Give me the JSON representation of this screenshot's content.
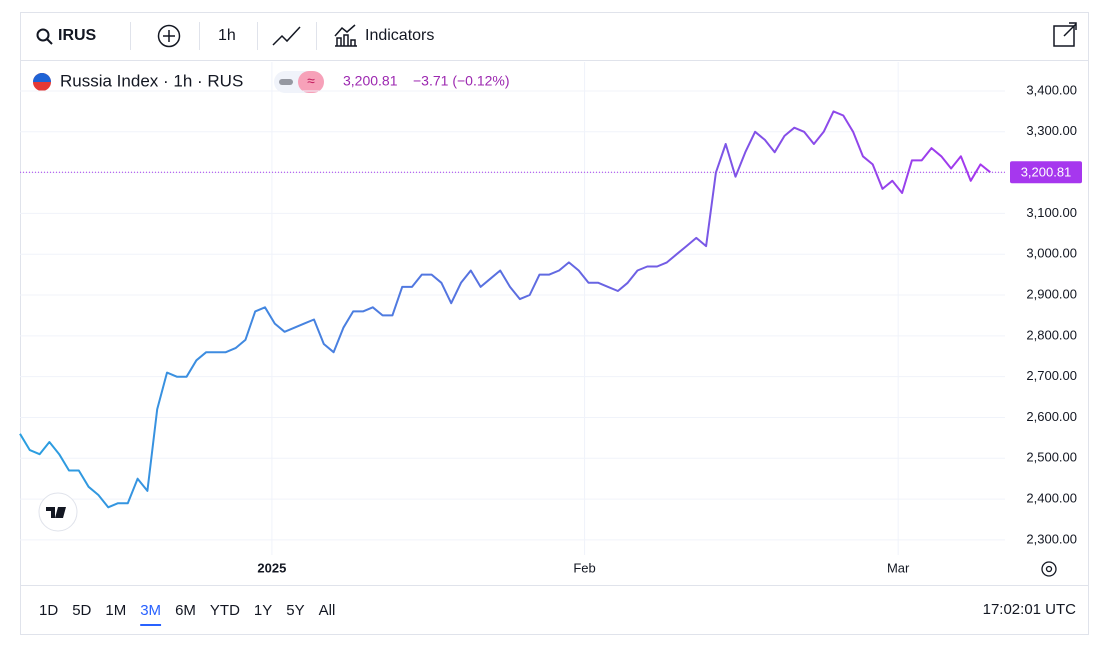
{
  "toolbar": {
    "symbol": "IRUS",
    "interval": "1h",
    "indicators": "Indicators"
  },
  "legend": {
    "name": "Russia Index · 1h · RUS",
    "price": "3,200.81",
    "change": "−3.71 (−0.12%)"
  },
  "ranges": [
    "1D",
    "5D",
    "1M",
    "3M",
    "6M",
    "YTD",
    "1Y",
    "5Y",
    "All"
  ],
  "active_range": "3M",
  "clock": "17:02:01 UTC",
  "chart_data": {
    "type": "line",
    "price_label": "3,200.81",
    "colors": [
      "#2a9fe0",
      "#5a6fe0",
      "#a637ee"
    ],
    "grid": true,
    "x": [
      0,
      1,
      2,
      3,
      4,
      5,
      6,
      7,
      8,
      9,
      10,
      11,
      12,
      13,
      14,
      15,
      16,
      17,
      18,
      19,
      20,
      21,
      22,
      23,
      24,
      25,
      26,
      27,
      28,
      29,
      30,
      31,
      32,
      33,
      34,
      35,
      36,
      37,
      38,
      39,
      40,
      41,
      42,
      43,
      44,
      45,
      46,
      47,
      48,
      49,
      50,
      51,
      52,
      53,
      54,
      55,
      56,
      57,
      58,
      59,
      60,
      61,
      62,
      63,
      64,
      65,
      66,
      67,
      68,
      69,
      70,
      71,
      72,
      73,
      74,
      75,
      76,
      77,
      78,
      79,
      80,
      81,
      82,
      83,
      84,
      85,
      86,
      87,
      88,
      89,
      90,
      91,
      92,
      93,
      94,
      95,
      96,
      97,
      98,
      99
    ],
    "series": [
      {
        "name": "Russia Index",
        "values": [
          2560,
          2520,
          2510,
          2540,
          2510,
          2470,
          2470,
          2430,
          2410,
          2380,
          2390,
          2390,
          2450,
          2420,
          2620,
          2710,
          2700,
          2700,
          2740,
          2760,
          2760,
          2760,
          2770,
          2790,
          2860,
          2870,
          2830,
          2810,
          2820,
          2830,
          2840,
          2780,
          2760,
          2820,
          2860,
          2860,
          2870,
          2850,
          2850,
          2920,
          2920,
          2950,
          2950,
          2930,
          2880,
          2930,
          2960,
          2920,
          2940,
          2960,
          2920,
          2890,
          2900,
          2950,
          2950,
          2960,
          2980,
          2960,
          2930,
          2930,
          2920,
          2910,
          2930,
          2960,
          2970,
          2970,
          2980,
          3000,
          3020,
          3040,
          3020,
          3200,
          3270,
          3190,
          3250,
          3300,
          3280,
          3250,
          3290,
          3310,
          3300,
          3270,
          3300,
          3350,
          3340,
          3300,
          3240,
          3220,
          3160,
          3180,
          3150,
          3230,
          3230,
          3260,
          3240,
          3210,
          3240,
          3180,
          3220,
          3200.81
        ]
      }
    ],
    "xlim": [
      0,
      100.5
    ],
    "xticks": [
      {
        "value": 25.7,
        "label": "2025"
      },
      {
        "value": 57.6,
        "label": "Feb"
      },
      {
        "value": 89.6,
        "label": "Mar"
      }
    ],
    "ylim": [
      2263,
      3471
    ],
    "yticks": [
      {
        "value": 2300,
        "label": "2,300.00"
      },
      {
        "value": 2400,
        "label": "2,400.00"
      },
      {
        "value": 2500,
        "label": "2,500.00"
      },
      {
        "value": 2600,
        "label": "2,600.00"
      },
      {
        "value": 2700,
        "label": "2,700.00"
      },
      {
        "value": 2800,
        "label": "2,800.00"
      },
      {
        "value": 2900,
        "label": "2,900.00"
      },
      {
        "value": 3000,
        "label": "3,000.00"
      },
      {
        "value": 3100,
        "label": "3,100.00"
      },
      {
        "value": 3200,
        "label": "3,200.00"
      },
      {
        "value": 3300,
        "label": "3,300.00"
      },
      {
        "value": 3400,
        "label": "3,400.00"
      }
    ]
  }
}
